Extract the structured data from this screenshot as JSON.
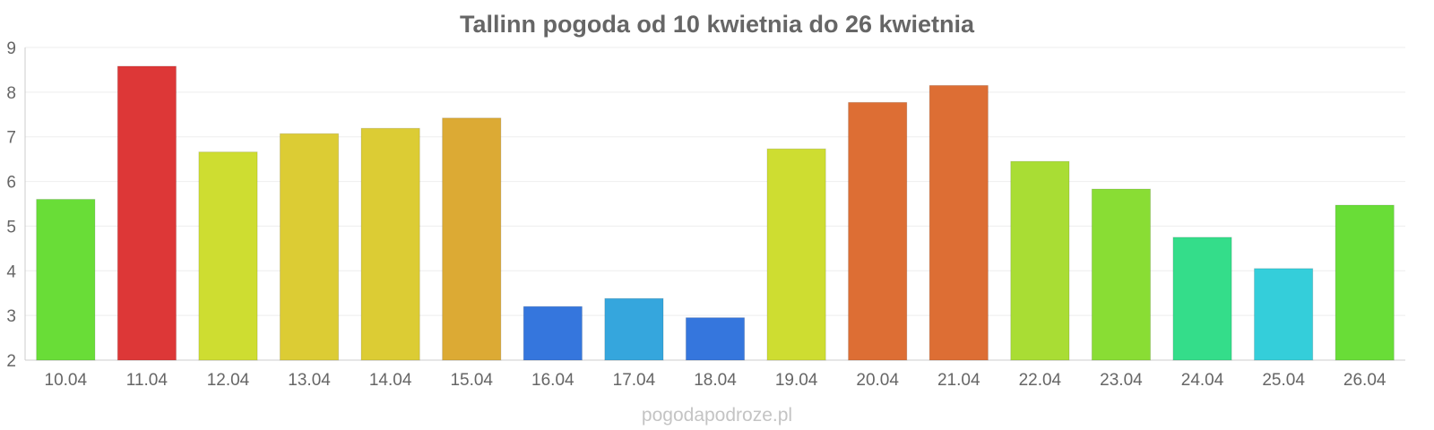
{
  "chart_data": {
    "type": "bar",
    "title": "Tallinn pogoda od 10 kwietnia do 26 kwietnia",
    "xlabel": "",
    "ylabel": "",
    "categories": [
      "10.04",
      "11.04",
      "12.04",
      "13.04",
      "14.04",
      "15.04",
      "16.04",
      "17.04",
      "18.04",
      "19.04",
      "20.04",
      "21.04",
      "22.04",
      "23.04",
      "24.04",
      "25.04",
      "26.04"
    ],
    "values": [
      5.6,
      8.58,
      6.66,
      7.07,
      7.19,
      7.42,
      3.2,
      3.38,
      2.95,
      6.73,
      7.77,
      8.15,
      6.45,
      5.83,
      4.75,
      4.05,
      5.47
    ],
    "colors": [
      "#69dd37",
      "#dd3737",
      "#cedd31",
      "#dccc34",
      "#dccc34",
      "#dcaa34",
      "#3576dd",
      "#35a6dd",
      "#3576dd",
      "#cedd31",
      "#dd6e34",
      "#dd6e34",
      "#a9dd34",
      "#89dd34",
      "#34dd8a",
      "#34ceda",
      "#69dd37"
    ],
    "ylim": [
      2,
      9
    ],
    "yticks": [
      2,
      3,
      4,
      5,
      6,
      7,
      8,
      9
    ],
    "grid": true,
    "legend": "none"
  },
  "watermark": "pogodapodroze.pl"
}
